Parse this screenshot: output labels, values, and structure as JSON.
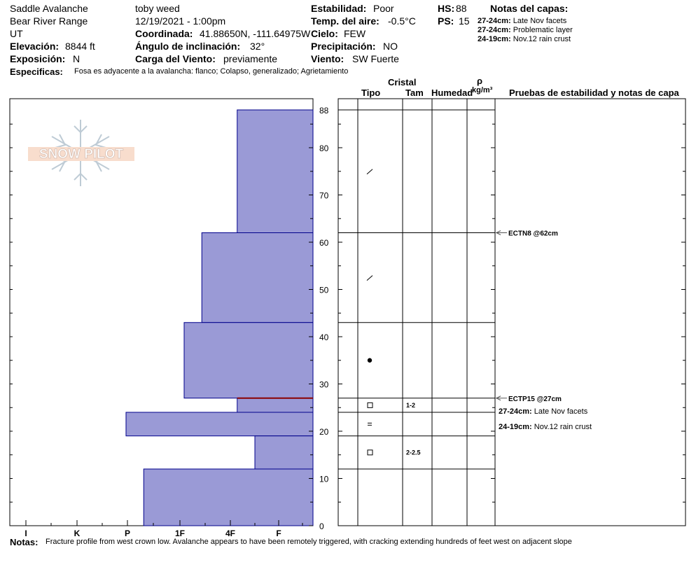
{
  "header": {
    "location": "Saddle Avalanche",
    "range": "Bear River Range",
    "state": "UT",
    "elevation_label": "Elevación:",
    "elevation_value": "8844 ft",
    "aspect_label": "Exposición:",
    "aspect_value": "N",
    "observer": "toby weed",
    "datetime": "12/19/2021 - 1:00pm",
    "coord_label": "Coordinada:",
    "coord_value": "41.88650N, -111.64975W",
    "slope_label": "Ángulo de inclinación:",
    "slope_value": "32°",
    "windload_label": "Carga del Viento:",
    "windload_value": "previamente",
    "stability_label": "Estabilidad:",
    "stability_value": "Poor",
    "airtemp_label": "Temp. del aire:",
    "airtemp_value": "-0.5°C",
    "sky_label": "Cielo:",
    "sky_value": "FEW",
    "precip_label": "Precipitación:",
    "precip_value": "NO",
    "wind_label": "Viento:",
    "wind_value": "SW Fuerte",
    "hs_label": "HS:",
    "hs_value": "88",
    "ps_label": "PS:",
    "ps_value": "15",
    "layer_notes_title": "Notas del capas:",
    "layer_notes": [
      {
        "depth": "27-24cm:",
        "text": "Late Nov facets"
      },
      {
        "depth": "27-24cm:",
        "text": "Problematic layer"
      },
      {
        "depth": "24-19cm:",
        "text": "Nov.12 rain crust"
      }
    ],
    "specifics_label": "Especificas:",
    "specifics_value": "Fosa es adyacente a la avalancha: flanco;  Colapso, generalizado;  Agrietamiento"
  },
  "logo": {
    "text": "SNOW PILOT"
  },
  "columns": {
    "cristal": "Cristal",
    "tipo": "Tipo",
    "tam": "Tam",
    "humedad": "Humedad",
    "rho": "ρ",
    "density_unit": "kg/m³",
    "tests_title": "Pruebas de estabilidad y notas de capa"
  },
  "layer_rows": [
    {
      "top": 88,
      "bottom": 62,
      "form": "/",
      "size": ""
    },
    {
      "top": 62,
      "bottom": 43,
      "form": "/",
      "size": ""
    },
    {
      "top": 43,
      "bottom": 27,
      "form": "●",
      "size": ""
    },
    {
      "top": 27,
      "bottom": 24,
      "form": "□",
      "size": "1-2"
    },
    {
      "top": 24,
      "bottom": 19,
      "form": "=",
      "size": ""
    },
    {
      "top": 19,
      "bottom": 12,
      "form": "□",
      "size": "2-2.5"
    },
    {
      "top": 12,
      "bottom": 0,
      "form": "",
      "size": ""
    }
  ],
  "tests": [
    {
      "depth": 62,
      "label": "ECTN8 @62cm"
    },
    {
      "depth": 27,
      "label": "ECTP15 @27cm"
    }
  ],
  "layer_comments": [
    {
      "depth": "27-24cm:",
      "text": "Late Nov facets"
    },
    {
      "depth": "24-19cm:",
      "text": "Nov.12 rain crust"
    }
  ],
  "notes": {
    "label": "Notas:",
    "text": "Fracture profile from west crown low. Avalanche appears to have been remotely triggered, with cracking extending hundreds of feet west on adjacent slope"
  },
  "colors": {
    "hardness_fill": "#9a9ad6",
    "hardness_edge": "#00008b",
    "weak_layer_line": "#8b0000"
  },
  "chart_data": {
    "type": "bar",
    "orientation": "horizontal",
    "title": "",
    "xlabel": "",
    "ylabel": "",
    "x_categories": [
      "I",
      "K",
      "P",
      "1F",
      "4F",
      "F"
    ],
    "y_ticks": [
      0,
      10,
      20,
      30,
      40,
      50,
      60,
      70,
      80,
      88
    ],
    "ylim": [
      0,
      88
    ],
    "hardness_axis_max": 6,
    "series": [
      {
        "name": "",
        "layers": [
          {
            "top": 88,
            "bottom": 62,
            "hardness": "F+",
            "hardness_index": 1.5
          },
          {
            "top": 62,
            "bottom": 43,
            "hardness": "4F",
            "hardness_index": 2.2
          },
          {
            "top": 43,
            "bottom": 27,
            "hardness": "4F+",
            "hardness_index": 2.55
          },
          {
            "top": 27,
            "bottom": 24,
            "hardness": "F+",
            "hardness_index": 1.5
          },
          {
            "top": 24,
            "bottom": 19,
            "hardness": "P",
            "hardness_index": 3.7
          },
          {
            "top": 19,
            "bottom": 12,
            "hardness": "F",
            "hardness_index": 1.15
          },
          {
            "top": 12,
            "bottom": 0,
            "hardness": "P-",
            "hardness_index": 3.35
          }
        ]
      }
    ],
    "weak_layer_depth": 27
  }
}
